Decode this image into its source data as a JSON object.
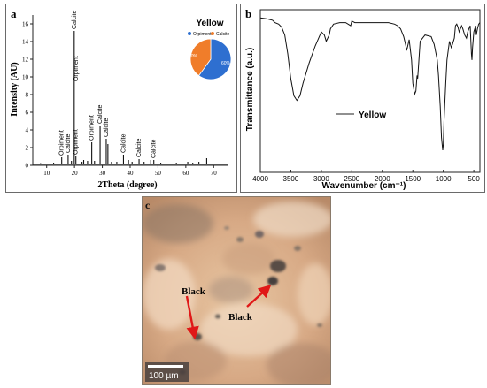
{
  "panel_a": {
    "letter": "a",
    "sample": "Yellow",
    "chart_data": {
      "type": "bar",
      "title": "",
      "xlabel": "2Theta (degree)",
      "ylabel": "Intensity (AU)",
      "xlim": [
        5,
        75
      ],
      "ylim": [
        0,
        17
      ],
      "x_ticks": [
        10,
        20,
        30,
        40,
        50,
        60,
        70
      ],
      "y_ticks": [
        0,
        2,
        4,
        6,
        8,
        10,
        12,
        14,
        16
      ],
      "peaks": [
        {
          "x": 7.8,
          "y": 0.25
        },
        {
          "x": 12.5,
          "y": 0.3
        },
        {
          "x": 15.4,
          "y": 0.9
        },
        {
          "x": 17.7,
          "y": 1.2
        },
        {
          "x": 18.9,
          "y": 0.5
        },
        {
          "x": 19.9,
          "y": 15.2
        },
        {
          "x": 20.5,
          "y": 1.0
        },
        {
          "x": 22.7,
          "y": 0.4
        },
        {
          "x": 23.3,
          "y": 0.6
        },
        {
          "x": 24.7,
          "y": 0.5
        },
        {
          "x": 26.2,
          "y": 2.6
        },
        {
          "x": 27.2,
          "y": 0.5
        },
        {
          "x": 29.2,
          "y": 4.5
        },
        {
          "x": 31.4,
          "y": 3.0
        },
        {
          "x": 32.0,
          "y": 2.4
        },
        {
          "x": 33.3,
          "y": 0.4
        },
        {
          "x": 35.2,
          "y": 0.4
        },
        {
          "x": 37.6,
          "y": 1.2
        },
        {
          "x": 39.4,
          "y": 0.6
        },
        {
          "x": 40.7,
          "y": 0.4
        },
        {
          "x": 43.2,
          "y": 0.7
        },
        {
          "x": 45.0,
          "y": 0.4
        },
        {
          "x": 47.4,
          "y": 0.6
        },
        {
          "x": 48.5,
          "y": 0.6
        },
        {
          "x": 51.0,
          "y": 0.3
        },
        {
          "x": 56.6,
          "y": 0.3
        },
        {
          "x": 60.7,
          "y": 0.4
        },
        {
          "x": 62.5,
          "y": 0.3
        },
        {
          "x": 64.7,
          "y": 0.4
        },
        {
          "x": 67.5,
          "y": 0.8
        }
      ],
      "annotations": [
        {
          "text": "Orpiment",
          "x": 15.4,
          "y": 0.9
        },
        {
          "text": "Calcite",
          "x": 17.7,
          "y": 1.2
        },
        {
          "text": "Calcite",
          "x": 19.9,
          "y": 15.2
        },
        {
          "text": "Orpiment",
          "x": 20.5,
          "y": 1.0
        },
        {
          "text": "Orpiment",
          "x": 20.6,
          "y": 9.3
        },
        {
          "text": "Orpiment",
          "x": 26.2,
          "y": 2.6
        },
        {
          "text": "Calcite",
          "x": 29.2,
          "y": 4.5
        },
        {
          "text": "Calcite",
          "x": 31.4,
          "y": 3.0
        },
        {
          "text": "Calcite",
          "x": 37.6,
          "y": 1.2
        },
        {
          "text": "Calcite",
          "x": 43.2,
          "y": 0.7
        },
        {
          "text": "Calcite",
          "x": 48.5,
          "y": 0.6
        }
      ],
      "inset_pie": {
        "legend": [
          "Orpiment",
          "Calcite"
        ],
        "values": [
          60,
          40
        ],
        "labels": [
          "60%",
          "40%"
        ],
        "colors": [
          "#2e6fd0",
          "#f07d2a"
        ]
      }
    }
  },
  "panel_b": {
    "letter": "b",
    "legend_label": "Yellow",
    "chart_data": {
      "type": "line",
      "title": "",
      "xlabel": "Wavenumber (cm⁻¹)",
      "ylabel": "Transmittance (a.u.)",
      "xlim": [
        4000,
        400
      ],
      "x_ticks": [
        4000,
        3500,
        3000,
        2500,
        2000,
        1500,
        1000,
        500
      ],
      "series": [
        {
          "name": "Yellow",
          "x": [
            4000,
            3900,
            3800,
            3760,
            3700,
            3650,
            3600,
            3550,
            3500,
            3450,
            3400,
            3350,
            3300,
            3200,
            3100,
            3000,
            2950,
            2920,
            2870,
            2850,
            2800,
            2700,
            2600,
            2520,
            2500,
            2450,
            2300,
            2100,
            1900,
            1800,
            1750,
            1700,
            1650,
            1620,
            1600,
            1560,
            1520,
            1500,
            1470,
            1450,
            1430,
            1420,
            1400,
            1380,
            1300,
            1200,
            1150,
            1100,
            1080,
            1050,
            1030,
            1010,
            1000,
            990,
            960,
            940,
            900,
            870,
            850,
            820,
            800,
            780,
            760,
            740,
            720,
            700,
            680,
            650,
            620,
            600,
            560,
            540,
            530,
            520,
            500,
            470,
            460,
            440,
            420,
            400
          ],
          "y": [
            97,
            96.5,
            95.5,
            94,
            93,
            91,
            86,
            74,
            58,
            47,
            44,
            47,
            55,
            68,
            79,
            88,
            86,
            82,
            86,
            90,
            93,
            94,
            94,
            92,
            95,
            94,
            94,
            94,
            94,
            93,
            92,
            90,
            85,
            80,
            76,
            83,
            70,
            55,
            48,
            50,
            60,
            58,
            70,
            82,
            86,
            85,
            80,
            70,
            60,
            40,
            20,
            12,
            16,
            30,
            55,
            70,
            82,
            78,
            80,
            84,
            92,
            93,
            91,
            88,
            90,
            92,
            90,
            86,
            84,
            88,
            92,
            74,
            70,
            78,
            88,
            92,
            86,
            90,
            93,
            94
          ]
        }
      ]
    }
  },
  "panel_c": {
    "letter": "c",
    "annotations": [
      "Black",
      "Black"
    ],
    "scale_bar": "100 µm"
  }
}
